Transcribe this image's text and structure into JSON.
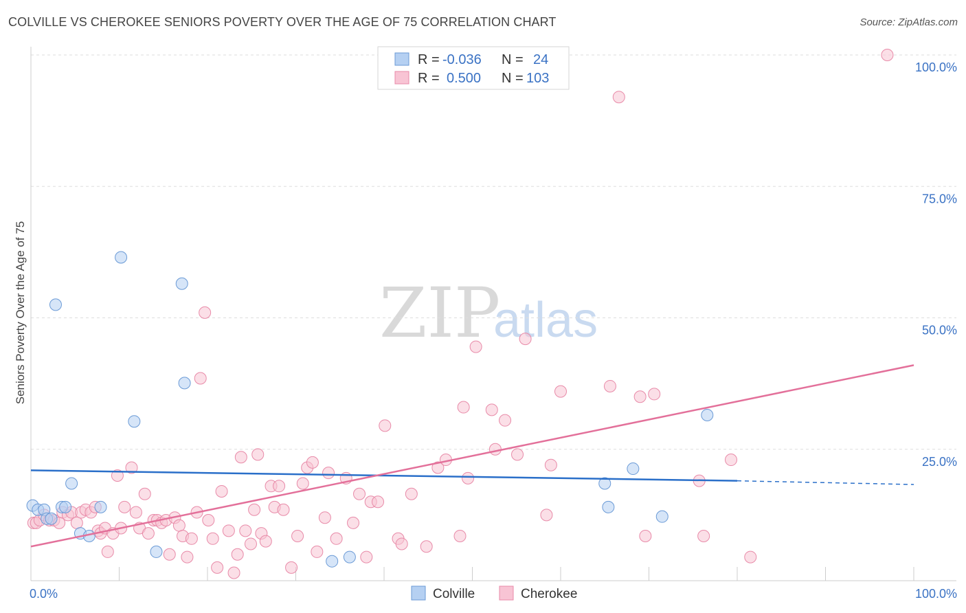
{
  "header": {
    "title": "COLVILLE VS CHEROKEE SENIORS POVERTY OVER THE AGE OF 75 CORRELATION CHART",
    "source": "Source: ZipAtlas.com"
  },
  "legend": {
    "rows": [
      {
        "r_label": "R =",
        "r_value": "-0.036",
        "n_label": "N =",
        "n_value": "24",
        "color": "#a8c8f0"
      },
      {
        "r_label": "R =",
        "r_value": "0.500",
        "n_label": "N =",
        "n_value": "103",
        "color": "#f5b8cb"
      }
    ]
  },
  "watermark": {
    "zip": "ZIP",
    "atlas": "atlas"
  },
  "colors": {
    "colville_fill": "#b5d0f2",
    "colville_stroke": "#6a9ad6",
    "colville_line": "#2a6fc9",
    "cherokee_fill": "#f8c4d4",
    "cherokee_stroke": "#e88aa8",
    "cherokee_line": "#e3709a",
    "tick_label": "#3a72c4",
    "grid": "#dddddd"
  },
  "chart_data": {
    "type": "scatter",
    "title": "COLVILLE VS CHEROKEE SENIORS POVERTY OVER THE AGE OF 75 CORRELATION CHART",
    "xlabel": "",
    "ylabel": "Seniors Poverty Over the Age of 75",
    "xlim": [
      0,
      100
    ],
    "ylim": [
      0,
      102
    ],
    "y_ticks": [
      {
        "value": 25,
        "label": "25.0%"
      },
      {
        "value": 50,
        "label": "50.0%"
      },
      {
        "value": 75,
        "label": "75.0%"
      },
      {
        "value": 100,
        "label": "100.0%"
      }
    ],
    "x_tick_labels": [
      {
        "value": 0,
        "label": "0.0%"
      },
      {
        "value": 100,
        "label": "100.0%"
      }
    ],
    "grid": true,
    "legend_position": "top-center",
    "series": [
      {
        "name": "Colville",
        "points": [
          [
            0.2,
            14.3
          ],
          [
            0.8,
            13.5
          ],
          [
            1.5,
            13.5
          ],
          [
            1.8,
            11.8
          ],
          [
            2.3,
            11.8
          ],
          [
            2.8,
            52.5
          ],
          [
            3.5,
            14.0
          ],
          [
            3.9,
            14.0
          ],
          [
            4.6,
            18.5
          ],
          [
            5.6,
            9.0
          ],
          [
            6.6,
            8.5
          ],
          [
            7.9,
            14.0
          ],
          [
            10.2,
            61.5
          ],
          [
            11.7,
            30.3
          ],
          [
            14.2,
            5.5
          ],
          [
            17.1,
            56.5
          ],
          [
            17.4,
            37.6
          ],
          [
            34.1,
            3.7
          ],
          [
            36.1,
            4.5
          ],
          [
            65.0,
            18.5
          ],
          [
            65.4,
            14.0
          ],
          [
            68.2,
            21.3
          ],
          [
            71.5,
            12.2
          ],
          [
            76.6,
            31.5
          ]
        ],
        "trend": {
          "x": [
            0,
            80
          ],
          "y": [
            21.0,
            19.0
          ],
          "dashed_to": [
            100,
            18.3
          ]
        }
      },
      {
        "name": "Cherokee",
        "points": [
          [
            0.3,
            11.0
          ],
          [
            0.6,
            11.0
          ],
          [
            1.0,
            11.5
          ],
          [
            1.5,
            12.5
          ],
          [
            2.1,
            11.5
          ],
          [
            2.6,
            11.5
          ],
          [
            3.2,
            11.0
          ],
          [
            3.6,
            13.0
          ],
          [
            4.2,
            12.5
          ],
          [
            4.6,
            13.0
          ],
          [
            5.2,
            11.0
          ],
          [
            5.7,
            13.0
          ],
          [
            6.2,
            13.5
          ],
          [
            6.8,
            13.0
          ],
          [
            7.3,
            14.0
          ],
          [
            7.6,
            9.5
          ],
          [
            7.9,
            9.0
          ],
          [
            8.4,
            10.0
          ],
          [
            8.7,
            5.5
          ],
          [
            9.3,
            9.0
          ],
          [
            9.8,
            20.0
          ],
          [
            10.2,
            10.0
          ],
          [
            10.6,
            14.0
          ],
          [
            11.4,
            21.5
          ],
          [
            11.9,
            13.0
          ],
          [
            12.3,
            10.0
          ],
          [
            12.9,
            16.5
          ],
          [
            13.3,
            9.0
          ],
          [
            13.9,
            11.5
          ],
          [
            14.3,
            11.5
          ],
          [
            14.8,
            11.0
          ],
          [
            15.3,
            11.5
          ],
          [
            15.7,
            5.0
          ],
          [
            16.3,
            12.0
          ],
          [
            16.8,
            10.5
          ],
          [
            17.2,
            8.5
          ],
          [
            17.7,
            4.5
          ],
          [
            18.2,
            8.0
          ],
          [
            18.8,
            13.0
          ],
          [
            19.2,
            38.5
          ],
          [
            19.7,
            51.0
          ],
          [
            20.1,
            11.5
          ],
          [
            20.6,
            8.0
          ],
          [
            21.1,
            2.5
          ],
          [
            21.6,
            17.0
          ],
          [
            22.4,
            9.5
          ],
          [
            23.0,
            1.5
          ],
          [
            23.4,
            5.0
          ],
          [
            23.8,
            23.5
          ],
          [
            24.3,
            9.5
          ],
          [
            24.9,
            7.0
          ],
          [
            25.3,
            13.5
          ],
          [
            25.7,
            24.0
          ],
          [
            26.1,
            9.0
          ],
          [
            26.6,
            7.5
          ],
          [
            27.2,
            18.0
          ],
          [
            27.6,
            14.0
          ],
          [
            28.1,
            18.0
          ],
          [
            28.6,
            13.5
          ],
          [
            29.5,
            2.5
          ],
          [
            30.2,
            8.5
          ],
          [
            30.8,
            18.5
          ],
          [
            31.3,
            21.5
          ],
          [
            31.9,
            22.5
          ],
          [
            32.4,
            5.5
          ],
          [
            33.3,
            12.0
          ],
          [
            33.7,
            20.5
          ],
          [
            34.6,
            8.0
          ],
          [
            35.7,
            19.5
          ],
          [
            36.5,
            11.0
          ],
          [
            37.2,
            16.5
          ],
          [
            38.0,
            4.5
          ],
          [
            38.5,
            15.0
          ],
          [
            39.3,
            15.0
          ],
          [
            40.1,
            29.5
          ],
          [
            41.6,
            8.0
          ],
          [
            42.0,
            7.0
          ],
          [
            43.1,
            16.5
          ],
          [
            44.8,
            6.5
          ],
          [
            46.1,
            21.5
          ],
          [
            47.0,
            23.0
          ],
          [
            48.6,
            8.5
          ],
          [
            49.0,
            33.0
          ],
          [
            49.5,
            19.5
          ],
          [
            50.4,
            44.5
          ],
          [
            52.2,
            32.5
          ],
          [
            52.6,
            25.0
          ],
          [
            53.7,
            30.5
          ],
          [
            55.1,
            24.0
          ],
          [
            56.0,
            46.0
          ],
          [
            58.4,
            12.5
          ],
          [
            58.9,
            22.0
          ],
          [
            60.0,
            36.0
          ],
          [
            65.6,
            37.0
          ],
          [
            66.6,
            92.0
          ],
          [
            69.0,
            35.0
          ],
          [
            69.6,
            8.5
          ],
          [
            70.6,
            35.5
          ],
          [
            75.7,
            19.0
          ],
          [
            76.2,
            8.5
          ],
          [
            79.3,
            23.0
          ],
          [
            81.5,
            4.5
          ],
          [
            97.0,
            100.0
          ]
        ],
        "trend": {
          "x": [
            0,
            100
          ],
          "y": [
            6.5,
            41.0
          ]
        }
      }
    ]
  }
}
